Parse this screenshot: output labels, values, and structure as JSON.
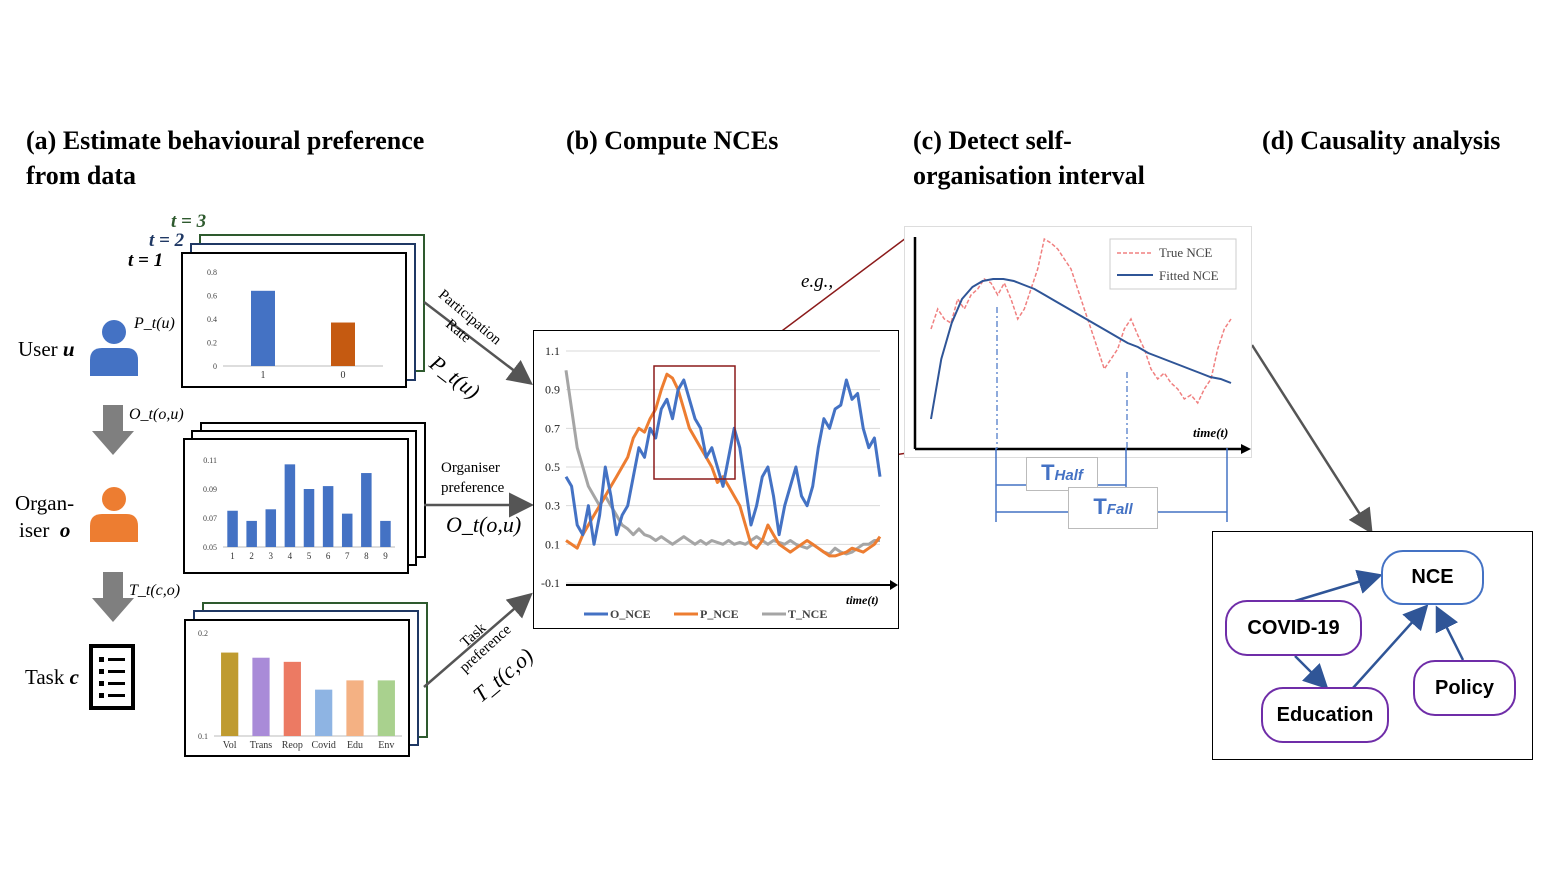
{
  "headings": {
    "a_line1": "(a) Estimate behavioural preference",
    "a_line2": "from data",
    "b": "(b) Compute NCEs",
    "c_line1": "(c) Detect self-",
    "c_line2": "organisation interval",
    "d": "(d) Causality analysis"
  },
  "panel_a": {
    "stack_labels": [
      "t = 3",
      "t = 2",
      "t = 1"
    ],
    "stack_label_colors": [
      "#2e5a2e",
      "#1f3864",
      "#000000"
    ],
    "entities": [
      {
        "label": "User",
        "var": "u",
        "icon": "user-icon",
        "color": "#4472c4"
      },
      {
        "label_line1": "Organ-",
        "label_line2": "iser",
        "var": "o",
        "icon": "organiser-icon",
        "color": "#ed7d31"
      },
      {
        "label": "Task",
        "var": "c",
        "icon": "task-list-icon",
        "color": "#000000"
      }
    ],
    "side_labels": [
      "P_t(u)",
      "O_t(o,u)",
      "T_t(c,o)"
    ],
    "chart1": {
      "type": "bar",
      "categories": [
        "1",
        "0"
      ],
      "values": [
        0.64,
        0.37
      ],
      "colors": [
        "#4472c4",
        "#c55a11"
      ],
      "yticks": [
        "0.8",
        "0.6",
        "0.4",
        "0.2",
        "0"
      ],
      "ylim": [
        0,
        0.8
      ]
    },
    "chart2": {
      "type": "bar",
      "categories": [
        "1",
        "2",
        "3",
        "4",
        "5",
        "6",
        "7",
        "8",
        "9"
      ],
      "values": [
        0.075,
        0.068,
        0.076,
        0.107,
        0.09,
        0.092,
        0.073,
        0.101,
        0.068
      ],
      "color": "#4472c4",
      "yticks": [
        "0.11",
        "0.09",
        "0.07",
        "0.05"
      ],
      "ylim": [
        0.05,
        0.11
      ]
    },
    "chart3": {
      "type": "bar",
      "categories": [
        "Vol",
        "Trans",
        "Reop",
        "Covid",
        "Edu",
        "Env"
      ],
      "values": [
        0.181,
        0.176,
        0.172,
        0.145,
        0.154,
        0.154
      ],
      "colors": [
        "#bf9b30",
        "#a98bd8",
        "#ec7a63",
        "#8eb4e3",
        "#f4b183",
        "#a9d18e"
      ],
      "yticks": [
        "0.2",
        "0.1"
      ],
      "ylim": [
        0.1,
        0.2
      ]
    }
  },
  "arrows_ab": {
    "top_label_line1": "Participation",
    "top_label_line2": "Rate",
    "top_formula": "P_t(u)",
    "mid_label_line1": "Organiser",
    "mid_label_line2": "preference",
    "mid_formula": "O_t(o,u)",
    "bottom_label_line1": "Task",
    "bottom_label_line2": "preference",
    "bottom_formula": "T_t(c,o)"
  },
  "panel_b": {
    "chart_data": {
      "type": "line",
      "xlabel": "time(t)",
      "yticks": [
        "1.1",
        "0.9",
        "0.7",
        "0.5",
        "0.3",
        "0.1",
        "-0.1"
      ],
      "ylim": [
        -0.1,
        1.1
      ],
      "series": [
        {
          "name": "O_NCE",
          "color": "#4472c4",
          "values": [
            0.45,
            0.4,
            0.2,
            0.15,
            0.3,
            0.1,
            0.25,
            0.5,
            0.35,
            0.15,
            0.25,
            0.3,
            0.45,
            0.6,
            0.55,
            0.7,
            0.65,
            0.8,
            0.85,
            0.75,
            0.9,
            0.95,
            0.85,
            0.75,
            0.7,
            0.55,
            0.6,
            0.5,
            0.4,
            0.55,
            0.7,
            0.6,
            0.4,
            0.2,
            0.3,
            0.45,
            0.5,
            0.35,
            0.15,
            0.3,
            0.4,
            0.5,
            0.35,
            0.3,
            0.4,
            0.6,
            0.75,
            0.7,
            0.8,
            0.82,
            0.95,
            0.85,
            0.88,
            0.7,
            0.6,
            0.65,
            0.45
          ]
        },
        {
          "name": "P_NCE",
          "color": "#ed7d31",
          "values": [
            0.12,
            0.1,
            0.08,
            0.15,
            0.2,
            0.25,
            0.3,
            0.35,
            0.4,
            0.45,
            0.5,
            0.55,
            0.65,
            0.7,
            0.68,
            0.75,
            0.8,
            0.9,
            0.98,
            0.96,
            0.9,
            0.8,
            0.7,
            0.65,
            0.6,
            0.55,
            0.5,
            0.42,
            0.45,
            0.4,
            0.35,
            0.3,
            0.2,
            0.1,
            0.08,
            0.12,
            0.2,
            0.15,
            0.1,
            0.08,
            0.06,
            0.08,
            0.1,
            0.12,
            0.1,
            0.08,
            0.06,
            0.04,
            0.04,
            0.05,
            0.06,
            0.08,
            0.07,
            0.06,
            0.08,
            0.1,
            0.14
          ]
        },
        {
          "name": "T_NCE",
          "color": "#a5a5a5",
          "values": [
            1.0,
            0.8,
            0.6,
            0.5,
            0.4,
            0.35,
            0.3,
            0.35,
            0.3,
            0.25,
            0.2,
            0.18,
            0.15,
            0.18,
            0.15,
            0.14,
            0.12,
            0.14,
            0.12,
            0.1,
            0.12,
            0.14,
            0.12,
            0.1,
            0.12,
            0.1,
            0.12,
            0.11,
            0.1,
            0.12,
            0.1,
            0.11,
            0.1,
            0.12,
            0.14,
            0.12,
            0.1,
            0.12,
            0.11,
            0.1,
            0.12,
            0.1,
            0.09,
            0.08,
            0.1,
            0.08,
            0.06,
            0.05,
            0.08,
            0.06,
            0.05,
            0.06,
            0.08,
            0.1,
            0.1,
            0.12,
            0.12
          ]
        }
      ]
    },
    "eg_label": "e.g.,"
  },
  "panel_c": {
    "chart_data": {
      "type": "line",
      "xlabel": "time(t)",
      "legend": [
        "True NCE",
        "Fitted NCE"
      ],
      "legend_position": "top-right",
      "series": [
        {
          "name": "True NCE",
          "color": "#f08080",
          "style": "dashed",
          "values": [
            0.55,
            0.65,
            0.6,
            0.58,
            0.7,
            0.65,
            0.72,
            0.75,
            0.8,
            0.78,
            0.72,
            0.78,
            0.7,
            0.6,
            0.65,
            0.75,
            0.85,
            1.0,
            0.98,
            0.95,
            0.9,
            0.85,
            0.75,
            0.65,
            0.55,
            0.45,
            0.35,
            0.4,
            0.45,
            0.55,
            0.6,
            0.52,
            0.45,
            0.35,
            0.3,
            0.33,
            0.28,
            0.25,
            0.2,
            0.22,
            0.18,
            0.25,
            0.3,
            0.45,
            0.55,
            0.6
          ]
        },
        {
          "name": "Fitted NCE",
          "color": "#2f5597",
          "style": "solid",
          "values": [
            0.1,
            0.4,
            0.58,
            0.7,
            0.76,
            0.79,
            0.8,
            0.8,
            0.79,
            0.77,
            0.75,
            0.72,
            0.69,
            0.66,
            0.63,
            0.6,
            0.57,
            0.54,
            0.51,
            0.48,
            0.46,
            0.43,
            0.41,
            0.39,
            0.37,
            0.35,
            0.33,
            0.31,
            0.3,
            0.28
          ]
        }
      ]
    },
    "t_half_label": "T",
    "t_half_sub": "Half",
    "t_fall_label": "T",
    "t_fall_sub": "Fall",
    "accent_color": "#4472c4"
  },
  "panel_d": {
    "nodes": {
      "nce": "NCE",
      "covid": "COVID-19",
      "education": "Education",
      "policy": "Policy"
    },
    "node_border": "#6f2da8",
    "nce_border": "#4472c4",
    "arrow_color": "#2f5597"
  }
}
